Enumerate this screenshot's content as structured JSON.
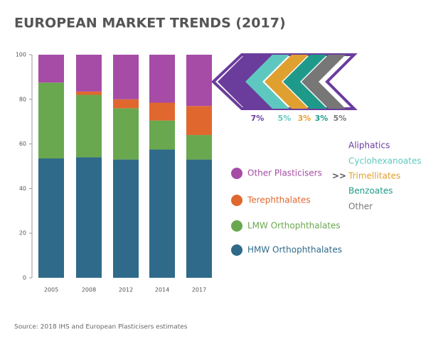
{
  "chart_data": {
    "type": "stacked_bar",
    "title": "EUROPEAN MARKET TRENDS (2017)",
    "source": "Source: 2018 IHS and European Plasticisers estimates",
    "categories": [
      "2005",
      "2008",
      "2012",
      "2014",
      "2017"
    ],
    "series": [
      {
        "name": "HMW Orthophthalates",
        "color": "#2f6a8a",
        "values": [
          53.5,
          54,
          53,
          57.5,
          53
        ]
      },
      {
        "name": "LMW Orthophthalates",
        "color": "#6aa84f",
        "values": [
          34,
          28,
          23,
          13,
          11
        ]
      },
      {
        "name": "Terephthalates",
        "color": "#e0682e",
        "values": [
          0,
          1.5,
          4,
          8,
          13
        ]
      },
      {
        "name": "Other Plasticisers",
        "color": "#a64ca6",
        "values": [
          12.5,
          16.5,
          20,
          21.5,
          23
        ]
      }
    ],
    "ylim": [
      0,
      100
    ],
    "yticks": [
      0,
      20,
      40,
      60,
      80,
      100
    ],
    "breakdown_marker": ">>",
    "breakdown": {
      "categories": [
        "Aliphatics",
        "Cyclohexanoates",
        "Trimellitates",
        "Benzoates",
        "Other"
      ],
      "values": [
        7,
        5,
        3,
        3,
        5
      ],
      "value_labels": [
        "7%",
        "5%",
        "3%",
        "3%",
        "5%"
      ],
      "colors": [
        "#6a3c9c",
        "#5ec8c0",
        "#e0a030",
        "#1f9a8a",
        "#777777"
      ]
    }
  }
}
